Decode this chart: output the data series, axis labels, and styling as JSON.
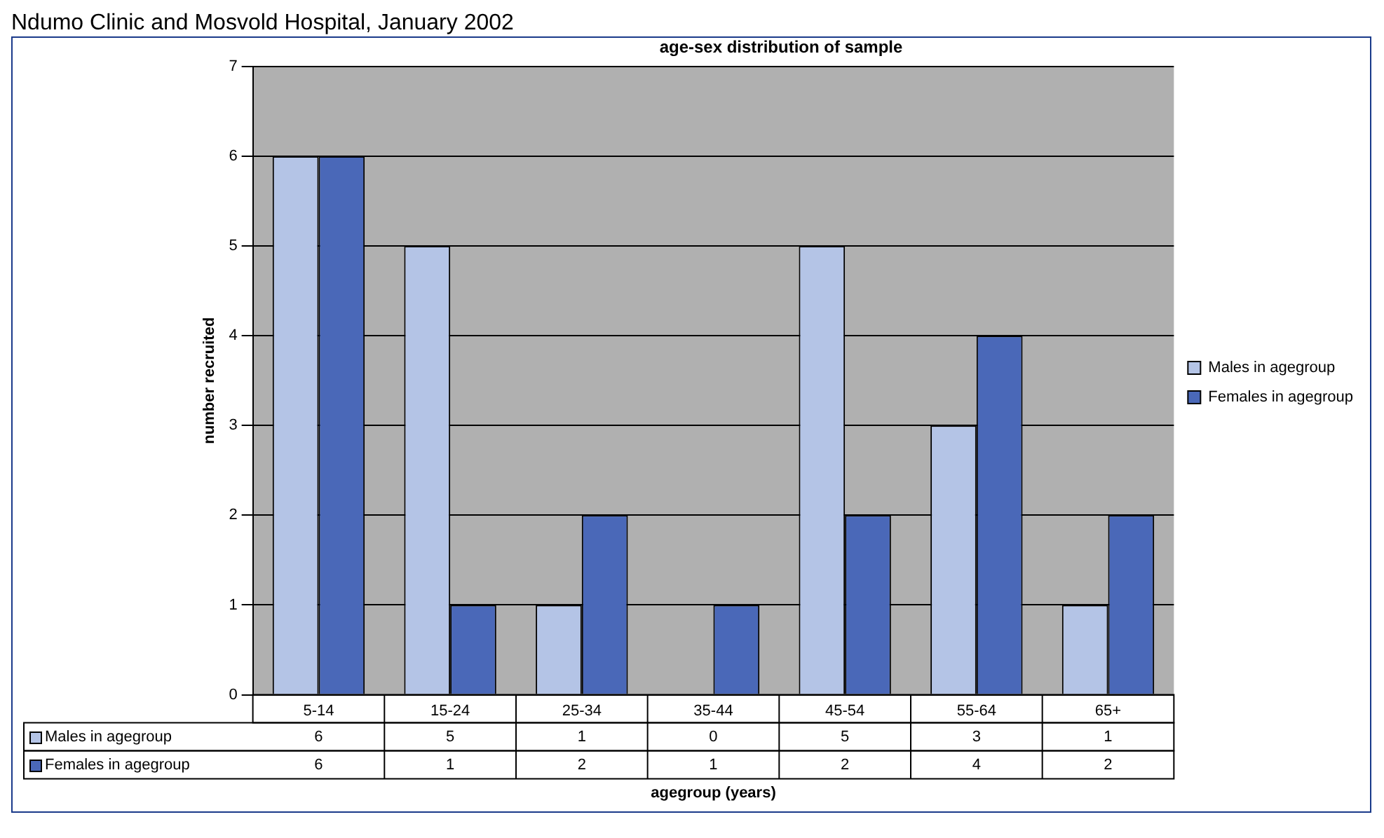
{
  "chart_data": {
    "type": "bar",
    "subtitle": "Ndumo Clinic and Mosvold Hospital, January 2002",
    "title": "age-sex distribution of sample",
    "xlabel": "agegroup (years)",
    "ylabel": "number recruited",
    "categories": [
      "5-14",
      "15-24",
      "25-34",
      "35-44",
      "45-54",
      "55-64",
      "65+"
    ],
    "series": [
      {
        "name": "Males in agegroup",
        "color": "#b4c4e6",
        "values": [
          6,
          5,
          1,
          0,
          5,
          3,
          1
        ]
      },
      {
        "name": "Females in agegroup",
        "color": "#4a68b8",
        "values": [
          6,
          1,
          2,
          1,
          2,
          4,
          2
        ]
      }
    ],
    "ylim": [
      0,
      7
    ],
    "yticks": [
      0,
      1,
      2,
      3,
      4,
      5,
      6,
      7
    ],
    "grid": "y",
    "legend": "right",
    "data_labels": true
  }
}
